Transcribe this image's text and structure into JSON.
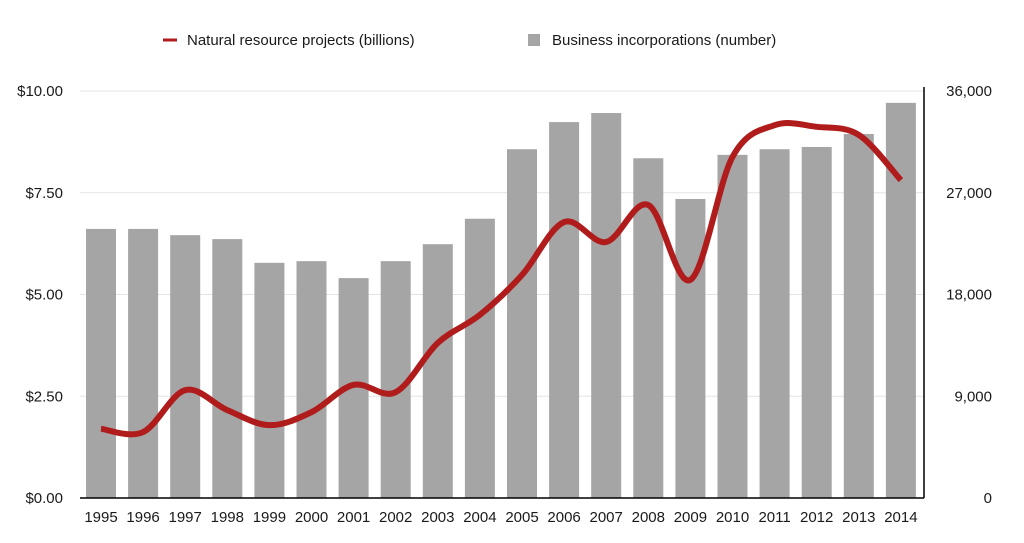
{
  "chart_data": {
    "type": "bar+line",
    "title": "",
    "categories": [
      "1995",
      "1996",
      "1997",
      "1998",
      "1999",
      "2000",
      "2001",
      "2002",
      "2003",
      "2004",
      "2005",
      "2006",
      "2007",
      "2008",
      "2009",
      "2010",
      "2011",
      "2012",
      "2013",
      "2014"
    ],
    "series": [
      {
        "name": "Business incorporations (number)",
        "type": "bar",
        "axis": "right",
        "color": "#a5a5a5",
        "values": [
          23800,
          23800,
          23250,
          22900,
          20800,
          20950,
          19450,
          20950,
          22450,
          24700,
          30850,
          33250,
          34050,
          30050,
          26450,
          30350,
          30850,
          31050,
          32200,
          34950
        ]
      },
      {
        "name": "Natural resource projects (billions)",
        "type": "line",
        "axis": "left",
        "color": "#b01c1c",
        "values": [
          1.7,
          1.62,
          2.65,
          2.16,
          1.79,
          2.11,
          2.78,
          2.6,
          3.81,
          4.5,
          5.48,
          6.78,
          6.29,
          7.2,
          5.36,
          8.38,
          9.16,
          9.12,
          8.92,
          7.81
        ]
      }
    ],
    "left_axis": {
      "ylim": [
        0,
        10
      ],
      "ticks": [
        0,
        2.5,
        5,
        7.5,
        10
      ],
      "tick_labels": [
        "$0.00",
        "$2.50",
        "$5.00",
        "$7.50",
        "$10.00"
      ]
    },
    "right_axis": {
      "ylim": [
        0,
        36000
      ],
      "ticks": [
        0,
        9000,
        18000,
        27000,
        36000
      ],
      "tick_labels": [
        "0",
        "9,000",
        "18,000",
        "27,000",
        "36,000"
      ]
    },
    "xlabel": "",
    "ylabel_left": "",
    "ylabel_right": "",
    "grid": true,
    "legend": {
      "position": "top-center",
      "entries": [
        {
          "label": "Natural resource projects (billions)",
          "marker": "line",
          "color": "#b01c1c"
        },
        {
          "label": "Business incorporations (number)",
          "marker": "square",
          "color": "#a5a5a5"
        }
      ]
    }
  }
}
